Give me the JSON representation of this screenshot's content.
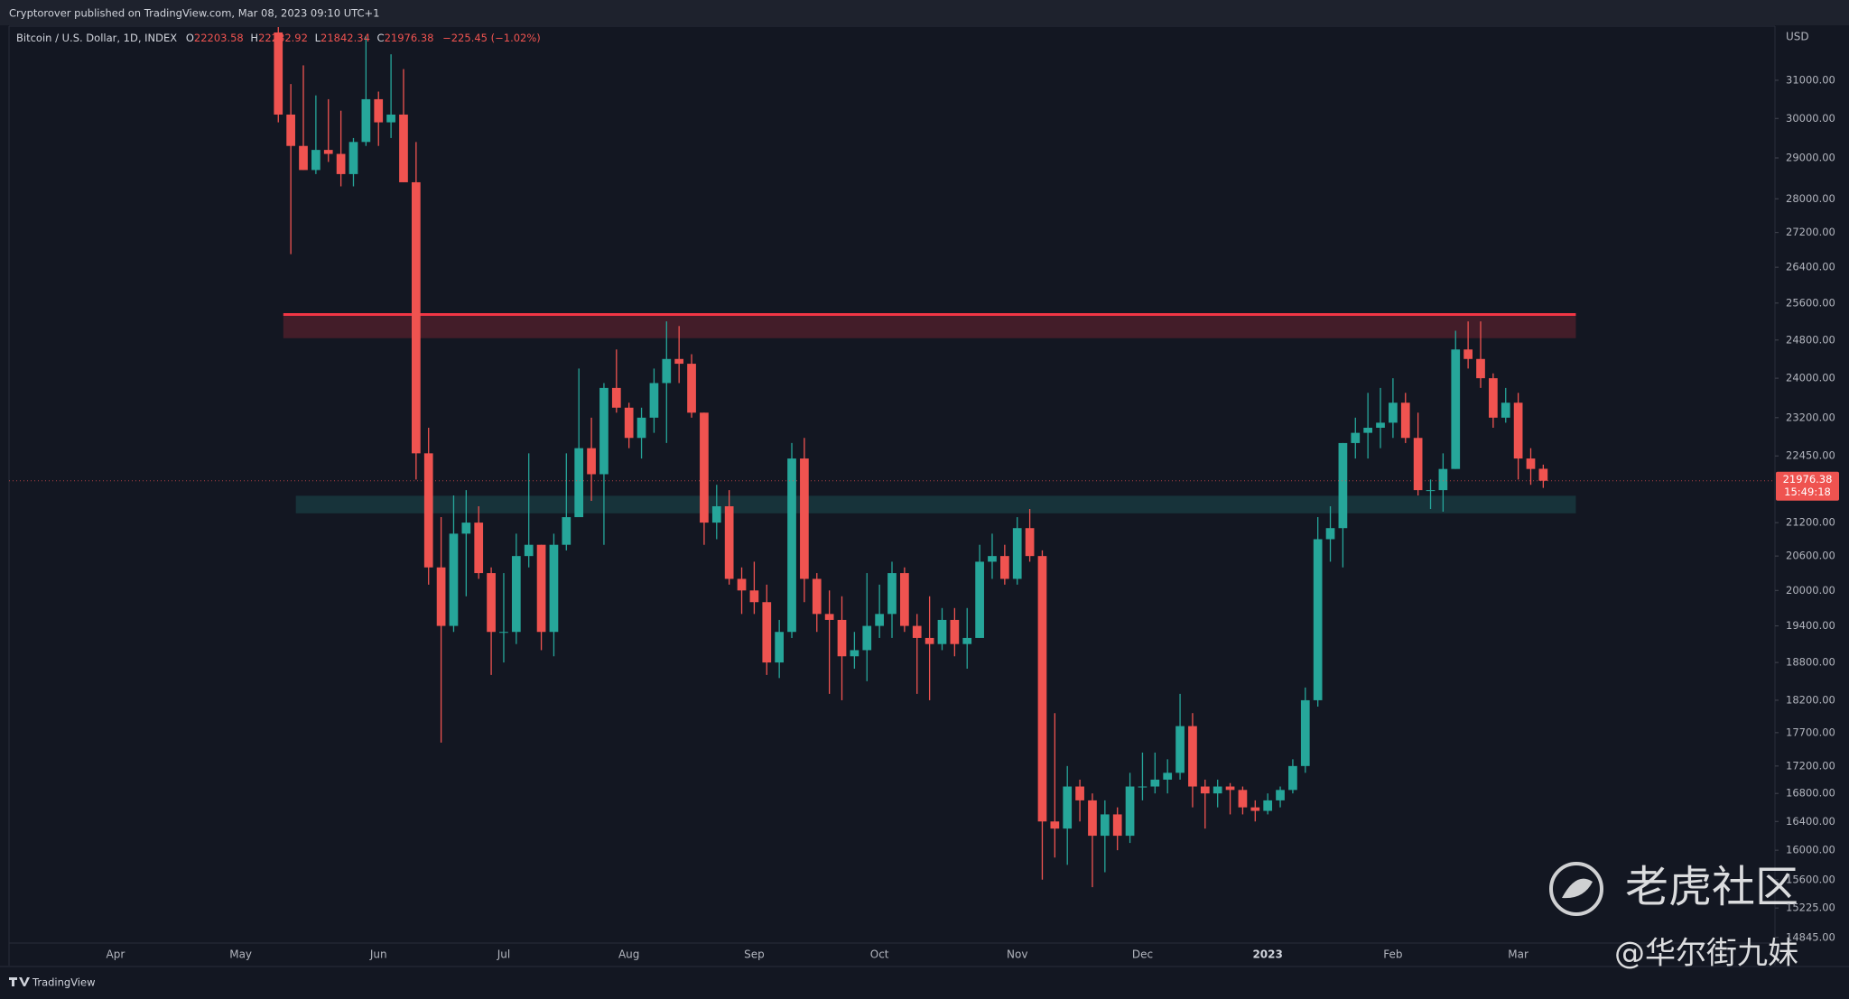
{
  "header": {
    "published": "Cryptorover published on TradingView.com, Mar 08, 2023 09:10 UTC+1",
    "brand": "TradingView"
  },
  "watermark": {
    "community": "老虎社区",
    "author": "@华尔街九妹"
  },
  "chart_data": {
    "type": "candlestick",
    "log_scale": true,
    "currency": "USD",
    "legend": {
      "name": "Bitcoin / U.S. Dollar, 1D, INDEX",
      "ohlc": [
        {
          "key": "O",
          "value": "22203.58"
        },
        {
          "key": "H",
          "value": "22282.92"
        },
        {
          "key": "L",
          "value": "21842.34"
        },
        {
          "key": "C",
          "value": "21976.38"
        }
      ],
      "change": "−225.45 (−1.02%)"
    },
    "up_color": "#26a69a",
    "down_color": "#ef5350",
    "categories": [
      null,
      null,
      null,
      null,
      null,
      null,
      null,
      null,
      "Apr",
      null,
      null,
      null,
      null,
      null,
      null,
      null,
      null,
      null,
      "May",
      null,
      null,
      null,
      null,
      null,
      null,
      null,
      null,
      null,
      null,
      "Jun",
      null,
      null,
      null,
      null,
      null,
      null,
      null,
      null,
      null,
      "Jul",
      null,
      null,
      null,
      null,
      null,
      null,
      null,
      null,
      null,
      "Aug",
      null,
      null,
      null,
      null,
      null,
      null,
      null,
      null,
      null,
      "Sep",
      null,
      null,
      null,
      null,
      null,
      null,
      null,
      null,
      null,
      "Oct",
      null,
      null,
      null,
      null,
      null,
      null,
      null,
      null,
      null,
      null,
      "Nov",
      null,
      null,
      null,
      null,
      null,
      null,
      null,
      null,
      null,
      "Dec",
      null,
      null,
      null,
      null,
      null,
      null,
      null,
      null,
      null,
      "2023",
      null,
      null,
      null,
      null,
      null,
      null,
      null,
      null,
      null,
      "Feb",
      null,
      null,
      null,
      null,
      null,
      null,
      null,
      null,
      null,
      "Mar",
      null,
      null,
      null,
      null,
      null,
      null,
      null,
      null,
      null,
      null,
      null,
      null,
      null,
      null,
      null,
      null,
      null,
      null,
      null,
      null
    ],
    "open": [
      null,
      null,
      null,
      null,
      null,
      null,
      null,
      null,
      null,
      null,
      null,
      null,
      null,
      null,
      null,
      null,
      null,
      null,
      null,
      null,
      null,
      32300,
      30100,
      29300,
      28700,
      29200,
      29100,
      28600,
      29400,
      30500,
      29900,
      30100,
      28400,
      22500,
      20400,
      19400,
      21000,
      21200,
      20300,
      19300,
      19300,
      20600,
      20800,
      19300,
      20800,
      21300,
      22600,
      22100,
      23800,
      23400,
      22800,
      23200,
      23900,
      24400,
      24300,
      23300,
      21200,
      21500,
      20200,
      20000,
      19800,
      18800,
      19300,
      22400,
      20200,
      19600,
      19500,
      18900,
      19000,
      19400,
      19600,
      20300,
      19400,
      19200,
      19100,
      19500,
      19100,
      19200,
      20500,
      20600,
      20200,
      21100,
      20600,
      16400,
      16300,
      16900,
      16700,
      16200,
      16500,
      16200,
      16900,
      16900,
      17000,
      17100,
      17800,
      16900,
      16800,
      16900,
      16850,
      16600,
      16550,
      16700,
      16850,
      17200,
      18200,
      20900,
      21100,
      22700,
      22900,
      23000,
      23100,
      23500,
      22800,
      21800,
      21800,
      22200,
      24600,
      24400,
      24000,
      23200,
      23500,
      22400,
      22203.58,
      null,
      null,
      null,
      null,
      null,
      null,
      null,
      null,
      null,
      null,
      null,
      null,
      null,
      null,
      null,
      null,
      null,
      null
    ],
    "high": [
      null,
      null,
      null,
      null,
      null,
      null,
      null,
      null,
      null,
      null,
      null,
      null,
      null,
      null,
      null,
      null,
      null,
      null,
      null,
      null,
      null,
      32450,
      30900,
      31400,
      30600,
      30500,
      30200,
      29500,
      32200,
      30700,
      31700,
      31300,
      29400,
      23000,
      21300,
      21700,
      21800,
      21500,
      20400,
      20300,
      21000,
      22500,
      20800,
      21000,
      22500,
      24200,
      23200,
      23900,
      24600,
      23500,
      23400,
      24200,
      25200,
      25100,
      24500,
      23300,
      21900,
      21800,
      20400,
      20500,
      20100,
      19500,
      22700,
      22800,
      20300,
      20000,
      19900,
      19300,
      20300,
      20100,
      20500,
      20400,
      19600,
      19900,
      19700,
      19700,
      19700,
      20800,
      21000,
      20800,
      21300,
      21450,
      20700,
      18000,
      17200,
      17000,
      16800,
      16700,
      16600,
      17100,
      17400,
      17400,
      17300,
      18300,
      18000,
      17000,
      17000,
      16950,
      16900,
      16700,
      16800,
      16900,
      17300,
      18400,
      21300,
      21500,
      22700,
      23200,
      23700,
      23800,
      24000,
      23700,
      23300,
      22000,
      22500,
      25000,
      25200,
      25200,
      24100,
      23800,
      23700,
      22600,
      22282.92,
      null,
      null,
      null,
      null,
      null,
      null,
      null,
      null,
      null,
      null,
      null,
      null,
      null,
      null,
      null,
      null,
      null,
      null
    ],
    "low": [
      null,
      null,
      null,
      null,
      null,
      null,
      null,
      null,
      null,
      null,
      null,
      null,
      null,
      null,
      null,
      null,
      null,
      null,
      null,
      null,
      null,
      29900,
      26700,
      28700,
      28600,
      28900,
      28300,
      28300,
      29300,
      29300,
      29500,
      28400,
      22000,
      20100,
      17550,
      19300,
      19900,
      20200,
      18600,
      18800,
      19100,
      20400,
      19000,
      18900,
      20700,
      21300,
      21600,
      20800,
      23300,
      22600,
      22400,
      22900,
      22700,
      23900,
      23200,
      20800,
      20900,
      20100,
      19600,
      19600,
      18600,
      18550,
      19200,
      19800,
      19300,
      18300,
      18200,
      18700,
      18500,
      19200,
      19200,
      19300,
      18300,
      18200,
      19000,
      18900,
      18700,
      19200,
      20200,
      20100,
      20100,
      20500,
      15600,
      15900,
      15800,
      16400,
      15500,
      15700,
      16000,
      16100,
      16700,
      16800,
      16800,
      17000,
      16600,
      16300,
      16600,
      16500,
      16500,
      16400,
      16500,
      16600,
      16800,
      17100,
      18100,
      20500,
      20400,
      22400,
      22400,
      22600,
      22800,
      22700,
      21700,
      21450,
      21400,
      22200,
      24200,
      23800,
      23000,
      23100,
      22000,
      21900,
      21842.34,
      null,
      null,
      null,
      null,
      null,
      null,
      null,
      null,
      null,
      null,
      null,
      null,
      null,
      null,
      null,
      null,
      null,
      null
    ],
    "close": [
      null,
      null,
      null,
      null,
      null,
      null,
      null,
      null,
      null,
      null,
      null,
      null,
      null,
      null,
      null,
      null,
      null,
      null,
      null,
      null,
      null,
      30100,
      29300,
      28700,
      29200,
      29100,
      28600,
      29400,
      30500,
      29900,
      30100,
      28400,
      22500,
      20400,
      19400,
      21000,
      21200,
      20300,
      19300,
      19300,
      20600,
      20800,
      19300,
      20800,
      21300,
      22600,
      22100,
      23800,
      23400,
      22800,
      23200,
      23900,
      24400,
      24300,
      23300,
      21200,
      21500,
      20200,
      20000,
      19800,
      18800,
      19300,
      22400,
      20200,
      19600,
      19500,
      18900,
      19000,
      19400,
      19600,
      20300,
      19400,
      19200,
      19100,
      19500,
      19100,
      19200,
      20500,
      20600,
      20200,
      21100,
      20600,
      16400,
      16300,
      16900,
      16700,
      16200,
      16500,
      16200,
      16900,
      16900,
      17000,
      17100,
      17800,
      16900,
      16800,
      16900,
      16850,
      16600,
      16550,
      16700,
      16850,
      17200,
      18200,
      20900,
      21100,
      22700,
      22900,
      23000,
      23100,
      23500,
      22800,
      21800,
      21800,
      22200,
      24600,
      24400,
      24000,
      23200,
      23500,
      22400,
      22200,
      21976.38,
      null,
      null,
      null,
      null,
      null,
      null,
      null,
      null,
      null,
      null,
      null,
      null,
      null,
      null,
      null,
      null,
      null,
      null
    ],
    "ylim": [
      14785,
      32475
    ],
    "yticks": [
      {
        "value": 31000,
        "label": "31000.00"
      },
      {
        "value": 30000,
        "label": "30000.00"
      },
      {
        "value": 29000,
        "label": "29000.00"
      },
      {
        "value": 28000,
        "label": "28000.00"
      },
      {
        "value": 27200,
        "label": "27200.00"
      },
      {
        "value": 26400,
        "label": "26400.00"
      },
      {
        "value": 25600,
        "label": "25600.00"
      },
      {
        "value": 24800,
        "label": "24800.00"
      },
      {
        "value": 24000,
        "label": "24000.00"
      },
      {
        "value": 23200,
        "label": "23200.00"
      },
      {
        "value": 22450,
        "label": "22450.00"
      },
      {
        "value": 21200,
        "label": "21200.00"
      },
      {
        "value": 20600,
        "label": "20600.00"
      },
      {
        "value": 20000,
        "label": "20000.00"
      },
      {
        "value": 19400,
        "label": "19400.00"
      },
      {
        "value": 18800,
        "label": "18800.00"
      },
      {
        "value": 18200,
        "label": "18200.00"
      },
      {
        "value": 17700,
        "label": "17700.00"
      },
      {
        "value": 17200,
        "label": "17200.00"
      },
      {
        "value": 16800,
        "label": "16800.00"
      },
      {
        "value": 16400,
        "label": "16400.00"
      },
      {
        "value": 16000,
        "label": "16000.00"
      },
      {
        "value": 15600,
        "label": "15600.00"
      },
      {
        "value": 15225,
        "label": "15225.00"
      },
      {
        "value": 14845,
        "label": "14845.00"
      }
    ],
    "zones": [
      {
        "ylim": [
          24840,
          25350
        ],
        "xrange": [
          21.4,
          124.6
        ],
        "fill": "rgba(242,54,69,0.22)",
        "line": "#f23645"
      },
      {
        "ylim": [
          21370,
          21695
        ],
        "xrange": [
          22.4,
          124.6
        ],
        "fill": "rgba(38,166,154,0.2)"
      }
    ],
    "last_price": 21976.38,
    "countdown": "15:49:18"
  }
}
